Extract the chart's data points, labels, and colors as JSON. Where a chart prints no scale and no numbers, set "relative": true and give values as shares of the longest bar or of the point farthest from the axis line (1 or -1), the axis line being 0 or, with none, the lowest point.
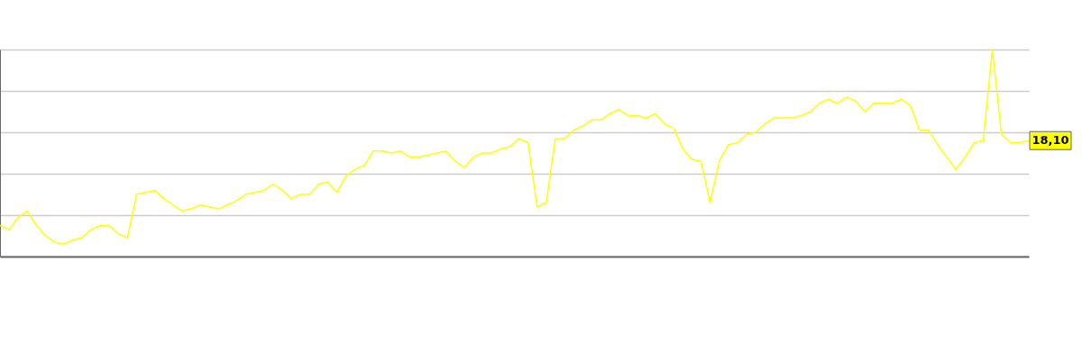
{
  "chart_data": {
    "type": "line",
    "relative": true,
    "grid": "y",
    "annotations": [
      "18,10"
    ],
    "marker": "none",
    "line_style": "solid",
    "categories": [
      null,
      null,
      null,
      null,
      null,
      null,
      null,
      null,
      null,
      null,
      null,
      null,
      null,
      null,
      null,
      null,
      null,
      null,
      null,
      null,
      null,
      null,
      null,
      null,
      null,
      null,
      null,
      null,
      null,
      null,
      null,
      null,
      null,
      null,
      null,
      null,
      null,
      null,
      null,
      null,
      null,
      null,
      null,
      null,
      null,
      null,
      null,
      null,
      null,
      null,
      null,
      null,
      null,
      null,
      null,
      null,
      null,
      null,
      null,
      null,
      null,
      null,
      null,
      null,
      null,
      null,
      null,
      null,
      null,
      null,
      null,
      null,
      null,
      null,
      null,
      null,
      null,
      null,
      null,
      null,
      null,
      null,
      null,
      null,
      null,
      null,
      null,
      null,
      null,
      null,
      null,
      null,
      null,
      null,
      null,
      null,
      null,
      null,
      null,
      null,
      null,
      null,
      null,
      null,
      null,
      null,
      null,
      null,
      null,
      null,
      null,
      null,
      null,
      null
    ],
    "series": [
      {
        "color": "#ffff00",
        "values": [
          0.15,
          0.13,
          0.19,
          0.22,
          0.15,
          0.1,
          0.07,
          0.06,
          0.08,
          0.09,
          0.13,
          0.15,
          0.15,
          0.11,
          0.09,
          0.3,
          0.31,
          0.32,
          0.28,
          0.25,
          0.22,
          0.23,
          0.25,
          0.24,
          0.23,
          0.25,
          0.27,
          0.3,
          0.31,
          0.32,
          0.35,
          0.32,
          0.28,
          0.3,
          0.3,
          0.35,
          0.36,
          0.31,
          0.39,
          0.42,
          0.44,
          0.51,
          0.51,
          0.5,
          0.51,
          0.48,
          0.48,
          0.49,
          0.5,
          0.51,
          0.46,
          0.43,
          0.48,
          0.5,
          0.5,
          0.52,
          0.53,
          0.57,
          0.55,
          0.24,
          0.26,
          0.57,
          0.57,
          0.61,
          0.63,
          0.66,
          0.66,
          0.69,
          0.71,
          0.68,
          0.68,
          0.67,
          0.69,
          0.64,
          0.62,
          0.52,
          0.47,
          0.46,
          0.26,
          0.46,
          0.54,
          0.55,
          0.59,
          0.6,
          0.64,
          0.67,
          0.67,
          0.67,
          0.68,
          0.7,
          0.74,
          0.76,
          0.74,
          0.77,
          0.75,
          0.7,
          0.74,
          0.74,
          0.74,
          0.76,
          0.73,
          0.61,
          0.61,
          0.54,
          0.48,
          0.42,
          0.48,
          0.55,
          0.56,
          1,
          0.59,
          0.55,
          0.55,
          0.56
        ]
      }
    ]
  }
}
